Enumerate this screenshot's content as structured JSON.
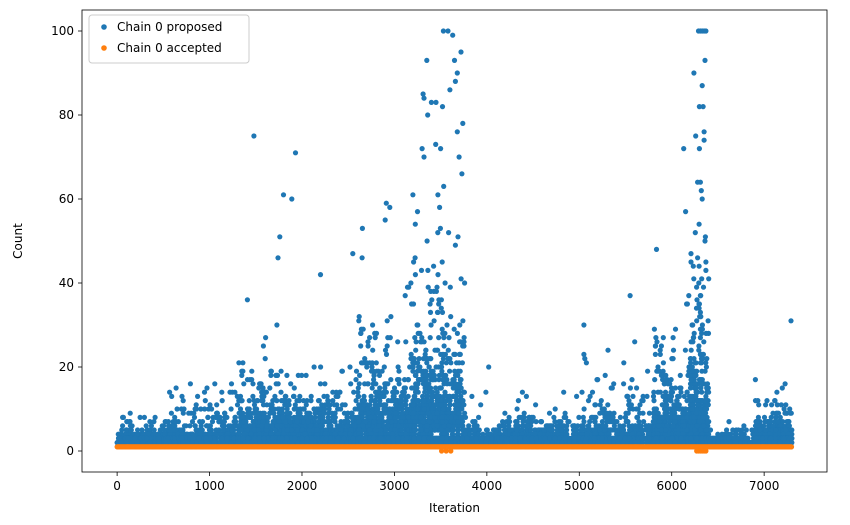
{
  "chart_data": {
    "type": "scatter",
    "title": "",
    "xlabel": "Iteration",
    "ylabel": "Count",
    "xlim": [
      -380,
      7680
    ],
    "ylim": [
      -5,
      105
    ],
    "xticks": [
      0,
      1000,
      2000,
      3000,
      4000,
      5000,
      6000,
      7000
    ],
    "yticks": [
      0,
      20,
      40,
      60,
      80,
      100
    ],
    "grid": false,
    "legend": {
      "placement": "top-left"
    },
    "series": [
      {
        "name": "Chain 0 proposed",
        "color": "#1f77b4",
        "marker": "circle",
        "points_note": "",
        "segments": [
          {
            "x0": 0,
            "x1": 500,
            "n": 220,
            "base": 2,
            "scale": 2.5,
            "max": 13
          },
          {
            "x0": 500,
            "x1": 1300,
            "n": 380,
            "base": 3,
            "scale": 4,
            "max": 20
          },
          {
            "x0": 1300,
            "x1": 2000,
            "n": 520,
            "base": 5,
            "scale": 7,
            "max": 45
          },
          {
            "x0": 2000,
            "x1": 2600,
            "n": 420,
            "base": 4,
            "scale": 6,
            "max": 30
          },
          {
            "x0": 2600,
            "x1": 3200,
            "n": 560,
            "base": 6,
            "scale": 10,
            "max": 60
          },
          {
            "x0": 3200,
            "x1": 3760,
            "n": 700,
            "base": 8,
            "scale": 15,
            "max": 75
          },
          {
            "x0": 3760,
            "x1": 4300,
            "n": 240,
            "base": 2,
            "scale": 2.5,
            "max": 15
          },
          {
            "x0": 4300,
            "x1": 5000,
            "n": 330,
            "base": 3,
            "scale": 3.5,
            "max": 18
          },
          {
            "x0": 5000,
            "x1": 5800,
            "n": 420,
            "base": 3,
            "scale": 5,
            "max": 26
          },
          {
            "x0": 5800,
            "x1": 6200,
            "n": 420,
            "base": 5,
            "scale": 9,
            "max": 60
          },
          {
            "x0": 6200,
            "x1": 6400,
            "n": 380,
            "base": 6,
            "scale": 16,
            "max": 100
          },
          {
            "x0": 6400,
            "x1": 6900,
            "n": 200,
            "base": 1.5,
            "scale": 1.5,
            "max": 6
          },
          {
            "x0": 6900,
            "x1": 7300,
            "n": 320,
            "base": 3,
            "scale": 4,
            "max": 31
          }
        ],
        "highlights": [
          [
            1480,
            75
          ],
          [
            1930,
            71
          ],
          [
            1800,
            61
          ],
          [
            1890,
            60
          ],
          [
            2200,
            42
          ],
          [
            1760,
            51
          ],
          [
            1740,
            46
          ],
          [
            3530,
            100
          ],
          [
            3580,
            100
          ],
          [
            3630,
            99
          ],
          [
            3720,
            95
          ],
          [
            3650,
            93
          ],
          [
            3350,
            93
          ],
          [
            3680,
            90
          ],
          [
            3660,
            88
          ],
          [
            3600,
            86
          ],
          [
            3310,
            85
          ],
          [
            3320,
            84
          ],
          [
            3400,
            83
          ],
          [
            3450,
            83
          ],
          [
            3520,
            82
          ],
          [
            3740,
            78
          ],
          [
            3680,
            76
          ],
          [
            3360,
            80
          ],
          [
            3500,
            72
          ],
          [
            3300,
            72
          ],
          [
            3320,
            70
          ],
          [
            3700,
            70
          ],
          [
            3730,
            66
          ],
          [
            2950,
            58
          ],
          [
            2900,
            55
          ],
          [
            3200,
            61
          ],
          [
            3470,
            61
          ],
          [
            3250,
            57
          ],
          [
            2550,
            47
          ],
          [
            2650,
            46
          ],
          [
            6290,
            100
          ],
          [
            6310,
            100
          ],
          [
            6330,
            100
          ],
          [
            6350,
            100
          ],
          [
            6370,
            100
          ],
          [
            6360,
            93
          ],
          [
            6240,
            90
          ],
          [
            6330,
            87
          ],
          [
            6300,
            82
          ],
          [
            6340,
            82
          ],
          [
            6260,
            75
          ],
          [
            6350,
            76
          ],
          [
            6350,
            74
          ],
          [
            6300,
            72
          ],
          [
            6130,
            72
          ],
          [
            6280,
            64
          ],
          [
            6310,
            64
          ],
          [
            6330,
            60
          ],
          [
            6150,
            57
          ],
          [
            6360,
            50
          ],
          [
            6370,
            45
          ],
          [
            6370,
            43
          ],
          [
            5550,
            37
          ],
          [
            5050,
            30
          ],
          [
            7290,
            31
          ],
          [
            5600,
            26
          ],
          [
            5060,
            22
          ],
          [
            5050,
            23
          ],
          [
            4020,
            20
          ],
          [
            3990,
            14
          ]
        ]
      },
      {
        "name": "Chain 0 accepted",
        "color": "#ff7f0e",
        "marker": "circle",
        "band": {
          "x0": 0,
          "x1": 7300,
          "y": 1
        },
        "zeros": [
          [
            3510,
            0
          ],
          [
            3560,
            0
          ],
          [
            3610,
            0
          ],
          [
            6270,
            0
          ],
          [
            6290,
            0
          ],
          [
            6310,
            0
          ],
          [
            6330,
            0
          ],
          [
            6350,
            0
          ],
          [
            6370,
            0
          ]
        ]
      }
    ]
  }
}
